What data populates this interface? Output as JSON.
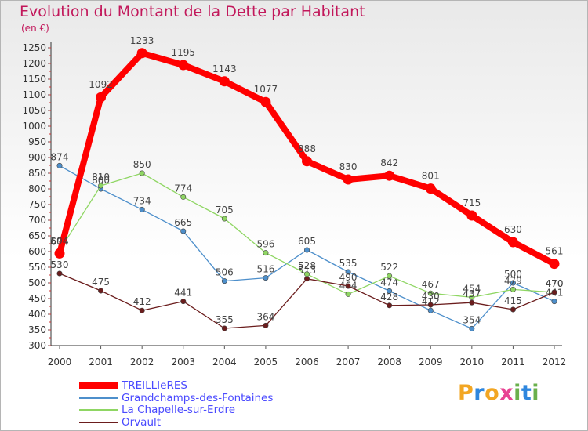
{
  "title": "Evolution du Montant de la Dette par Habitant",
  "subtitle": "(en €)",
  "brand": {
    "letters": [
      "P",
      "r",
      "o",
      "x",
      "i",
      "t",
      "i"
    ],
    "colors": [
      "#f2a623",
      "#2e86de",
      "#f2a623",
      "#e84393",
      "#6ab04c",
      "#2e86de",
      "#6ab04c"
    ]
  },
  "chart_data": {
    "type": "line",
    "x": [
      "2000",
      "2001",
      "2002",
      "2003",
      "2004",
      "2005",
      "2006",
      "2007",
      "2008",
      "2009",
      "2010",
      "2011",
      "2012"
    ],
    "ylim": [
      300,
      1250
    ],
    "yticks": [
      300,
      350,
      400,
      450,
      500,
      550,
      600,
      650,
      700,
      750,
      800,
      850,
      900,
      950,
      1000,
      1050,
      1100,
      1150,
      1200,
      1250
    ],
    "grid": false,
    "legend": "bottom-left",
    "series": [
      {
        "name": "TREILLIeRES",
        "color": "#ff0000",
        "values": [
          594,
          1092,
          1233,
          1195,
          1143,
          1077,
          888,
          830,
          842,
          801,
          715,
          630,
          561
        ]
      },
      {
        "name": "Grandchamps-des-Fontaines",
        "color": "#4d8fcb",
        "values": [
          874,
          800,
          734,
          665,
          506,
          516,
          605,
          535,
          474,
          412,
          354,
          500,
          441
        ]
      },
      {
        "name": "La Chapelle-sur-Erdre",
        "color": "#8fd663",
        "values": [
          604,
          810,
          850,
          774,
          705,
          596,
          528,
          464,
          522,
          467,
          454,
          479,
          470
        ]
      },
      {
        "name": "Orvault",
        "color": "#6b1d1d",
        "values": [
          530,
          475,
          412,
          441,
          355,
          364,
          513,
          490,
          428,
          430,
          437,
          415,
          470
        ]
      }
    ]
  }
}
